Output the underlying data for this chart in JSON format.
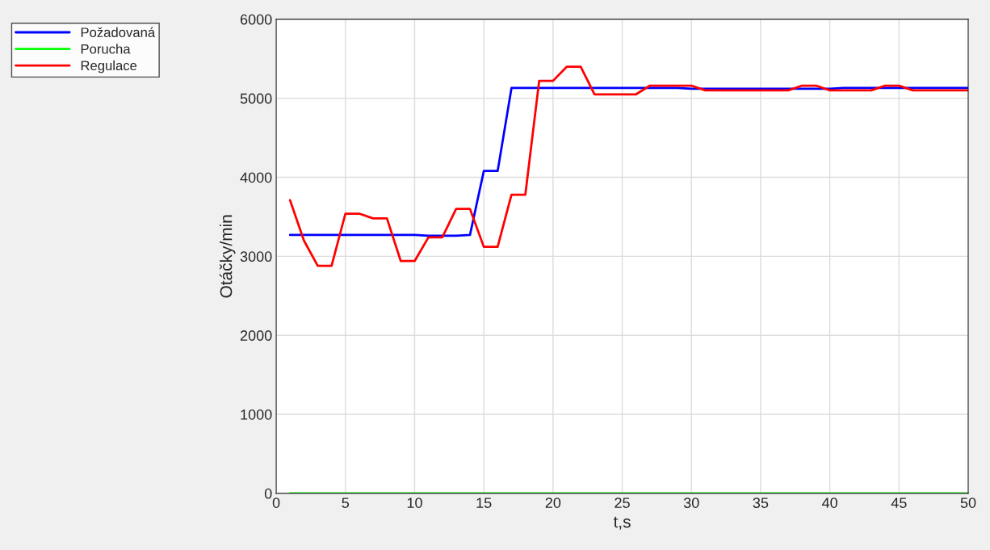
{
  "chart_data": {
    "type": "line",
    "xlabel": "t,s",
    "ylabel": "Otáčky/min",
    "x": [
      1,
      2,
      3,
      4,
      5,
      6,
      7,
      8,
      9,
      10,
      11,
      12,
      13,
      14,
      15,
      16,
      17,
      18,
      19,
      20,
      21,
      22,
      23,
      24,
      25,
      26,
      27,
      28,
      29,
      30,
      31,
      32,
      33,
      34,
      35,
      36,
      37,
      38,
      39,
      40,
      41,
      42,
      43,
      44,
      45,
      46,
      47,
      48,
      49,
      50
    ],
    "series": [
      {
        "name": "Požadovaná",
        "color": "#0000ff",
        "values": [
          3270,
          3270,
          3270,
          3270,
          3270,
          3270,
          3270,
          3270,
          3270,
          3270,
          3260,
          3260,
          3260,
          3270,
          4080,
          4080,
          5130,
          5130,
          5130,
          5130,
          5130,
          5130,
          5130,
          5130,
          5130,
          5130,
          5130,
          5130,
          5130,
          5120,
          5120,
          5120,
          5120,
          5120,
          5120,
          5120,
          5120,
          5120,
          5120,
          5120,
          5130,
          5130,
          5130,
          5130,
          5130,
          5130,
          5130,
          5130,
          5130,
          5130
        ]
      },
      {
        "name": "Porucha",
        "color": "#00ff00",
        "values": [
          0,
          0,
          0,
          0,
          0,
          0,
          0,
          0,
          0,
          0,
          0,
          0,
          0,
          0,
          0,
          0,
          0,
          0,
          0,
          0,
          0,
          0,
          0,
          0,
          0,
          0,
          0,
          0,
          0,
          0,
          0,
          0,
          0,
          0,
          0,
          0,
          0,
          0,
          0,
          0,
          0,
          0,
          0,
          0,
          0,
          0,
          0,
          0,
          0,
          0
        ]
      },
      {
        "name": "Regulace",
        "color": "#ff0000",
        "values": [
          3710,
          3200,
          2880,
          2880,
          3540,
          3540,
          3480,
          3480,
          2940,
          2940,
          3240,
          3240,
          3600,
          3600,
          3120,
          3120,
          3780,
          3780,
          5220,
          5220,
          5400,
          5400,
          5050,
          5050,
          5050,
          5050,
          5160,
          5160,
          5160,
          5160,
          5100,
          5100,
          5100,
          5100,
          5100,
          5100,
          5100,
          5160,
          5160,
          5100,
          5100,
          5100,
          5100,
          5160,
          5160,
          5100,
          5100,
          5100,
          5100,
          5100
        ]
      }
    ],
    "xlim": [
      0,
      50
    ],
    "xticks": [
      0,
      5,
      10,
      15,
      20,
      25,
      30,
      35,
      40,
      45,
      50
    ],
    "ylim": [
      0,
      6000
    ],
    "yticks": [
      0,
      1000,
      2000,
      3000,
      4000,
      5000,
      6000
    ],
    "grid": true,
    "legend": "top left"
  }
}
